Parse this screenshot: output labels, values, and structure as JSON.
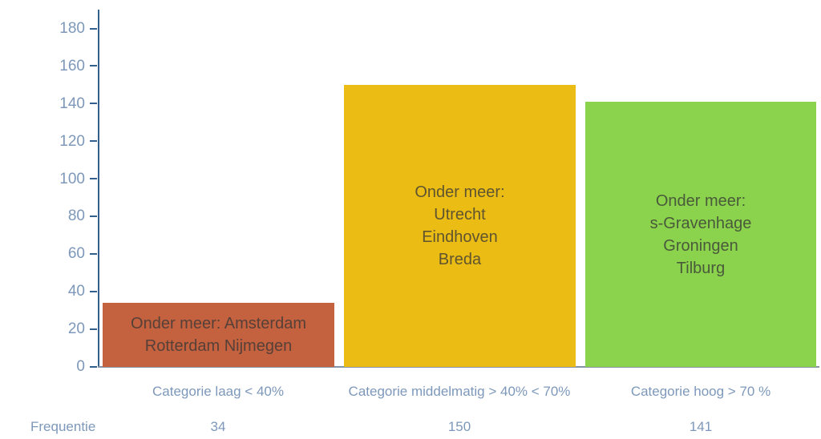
{
  "chart_data": {
    "type": "bar",
    "title": "",
    "xlabel": "",
    "ylabel": "",
    "ylim": [
      0,
      180
    ],
    "yticks": [
      0,
      20,
      40,
      60,
      80,
      100,
      120,
      140,
      160,
      180
    ],
    "grid": false,
    "legend": "none",
    "categories": [
      "Categorie laag < 40%",
      "Categorie middelmatig > 40% < 70%",
      "Categorie hoog > 70 %"
    ],
    "values": [
      34,
      150,
      141
    ],
    "frequency_row_label": "Frequentie",
    "bars": [
      {
        "category": "Categorie laag < 40%",
        "value": 34,
        "color": "#c4613e",
        "lines": [
          "Onder meer: Amsterdam",
          "Rotterdam Nijmegen"
        ]
      },
      {
        "category": "Categorie middelmatig > 40% < 70%",
        "value": 150,
        "color": "#ebbc13",
        "lines": [
          "Onder meer:",
          "Utrecht",
          "Eindhoven",
          "Breda"
        ]
      },
      {
        "category": "Categorie hoog > 70 %",
        "value": 141,
        "color": "#8bd34c",
        "lines": [
          "Onder meer:",
          "s-Gravenhage",
          "Groningen",
          "Tilburg"
        ]
      }
    ],
    "colors": {
      "bar_low": "#c4613e",
      "bar_mid": "#ebbc13",
      "bar_high": "#8bd34c",
      "axis_line": "#33608d",
      "baseline": "#8294a5",
      "axis_text": "#7d98ba",
      "bar_text": "#4a4a42"
    }
  }
}
